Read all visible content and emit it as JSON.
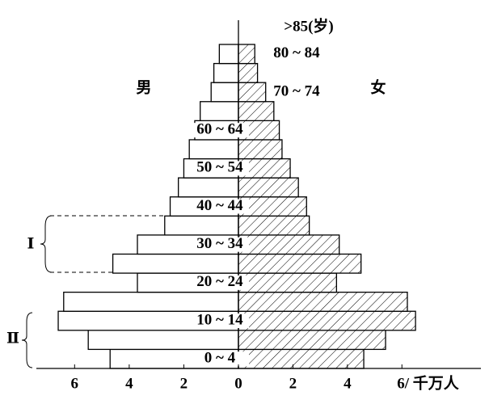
{
  "chart_data": {
    "type": "pyramid",
    "y_label": ">85(岁)",
    "categories": [
      "0 ~ 4",
      null,
      "10 ~ 14",
      null,
      "20 ~ 24",
      null,
      "30 ~ 34",
      null,
      "40 ~ 44",
      null,
      "50 ~ 54",
      null,
      "60 ~ 64",
      null,
      "70 ~ 74",
      null,
      "80 ~ 84"
    ],
    "series": [
      {
        "name": "男",
        "color": "#ffffff",
        "values": [
          4.7,
          5.5,
          6.6,
          6.4,
          3.7,
          4.6,
          3.7,
          2.7,
          2.5,
          2.2,
          2.0,
          1.8,
          1.6,
          1.4,
          1.0,
          0.9,
          0.7
        ]
      },
      {
        "name": "女",
        "color": "hatch",
        "values": [
          4.6,
          5.4,
          6.5,
          6.2,
          3.6,
          4.5,
          3.7,
          2.6,
          2.5,
          2.2,
          1.9,
          1.6,
          1.5,
          1.3,
          1.0,
          0.7,
          0.6
        ]
      }
    ],
    "xlim_male": [
      0,
      7.4
    ],
    "xticks_male": [
      2,
      4,
      6
    ],
    "xlim": [
      0,
      8.9
    ],
    "xticks": [
      0,
      2,
      4,
      {
        "value": 6,
        "label": "6/ 千万人"
      }
    ],
    "annotations": [
      "Ⅰ",
      "Ⅱ"
    ]
  }
}
